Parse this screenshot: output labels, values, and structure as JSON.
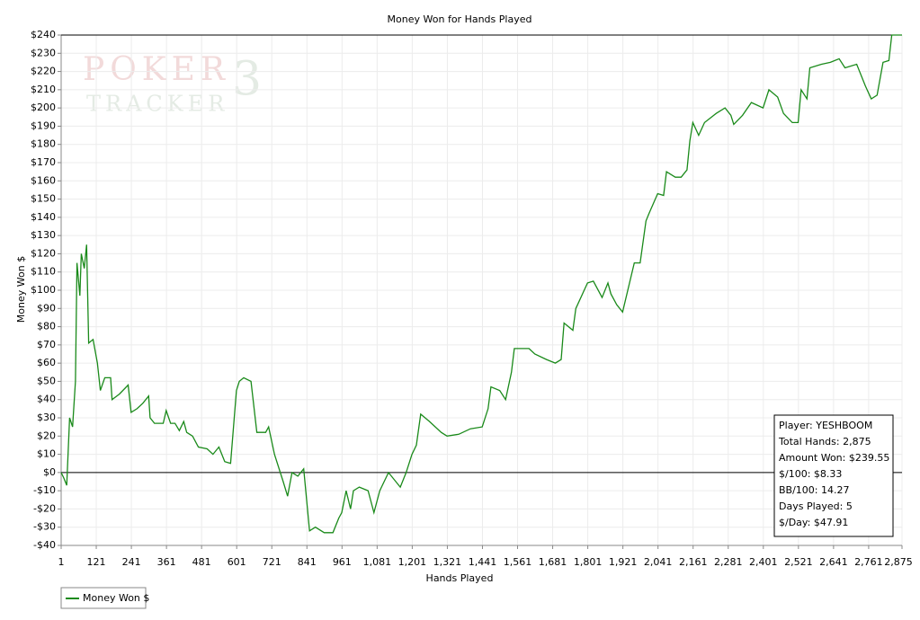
{
  "chart_data": {
    "type": "line",
    "title": "Money Won for Hands Played",
    "x_label": "Hands Played",
    "y_label": "Money Won $",
    "watermark": [
      "POKER",
      "TRACKER",
      "3"
    ],
    "annotations": [
      "Player: YESHBOOM",
      "Total Hands: 2,875",
      "Amount Won: $239.55",
      "$/100: $8.33",
      "BB/100: 14.27",
      "Days Played: 5",
      "$/Day: $47.91"
    ],
    "grid": true,
    "legend": "bottom-left",
    "xlim": [
      1,
      2875
    ],
    "ylim": [
      -40,
      240
    ],
    "xticks": [
      1,
      121,
      241,
      361,
      481,
      601,
      721,
      841,
      961,
      {
        "value": 1081,
        "label": "1,081"
      },
      {
        "value": 1201,
        "label": "1,201"
      },
      {
        "value": 1321,
        "label": "1,321"
      },
      {
        "value": 1441,
        "label": "1,441"
      },
      {
        "value": 1561,
        "label": "1,561"
      },
      {
        "value": 1681,
        "label": "1,681"
      },
      {
        "value": 1801,
        "label": "1,801"
      },
      {
        "value": 1921,
        "label": "1,921"
      },
      {
        "value": 2041,
        "label": "2,041"
      },
      {
        "value": 2161,
        "label": "2,161"
      },
      {
        "value": 2281,
        "label": "2,281"
      },
      {
        "value": 2401,
        "label": "2,401"
      },
      {
        "value": 2521,
        "label": "2,521"
      },
      {
        "value": 2641,
        "label": "2,641"
      },
      {
        "value": 2761,
        "label": "2,761"
      },
      {
        "value": 2875,
        "label": "2,875"
      }
    ],
    "yticks": [
      {
        "value": -40,
        "label": "-$40"
      },
      {
        "value": -30,
        "label": "-$30"
      },
      {
        "value": -20,
        "label": "-$20"
      },
      {
        "value": -10,
        "label": "-$10"
      },
      {
        "value": 0,
        "label": "$0"
      },
      {
        "value": 10,
        "label": "$10"
      },
      {
        "value": 20,
        "label": "$20"
      },
      {
        "value": 30,
        "label": "$30"
      },
      {
        "value": 40,
        "label": "$40"
      },
      {
        "value": 50,
        "label": "$50"
      },
      {
        "value": 60,
        "label": "$60"
      },
      {
        "value": 70,
        "label": "$70"
      },
      {
        "value": 80,
        "label": "$80"
      },
      {
        "value": 90,
        "label": "$90"
      },
      {
        "value": 100,
        "label": "$100"
      },
      {
        "value": 110,
        "label": "$110"
      },
      {
        "value": 120,
        "label": "$120"
      },
      {
        "value": 130,
        "label": "$130"
      },
      {
        "value": 140,
        "label": "$140"
      },
      {
        "value": 150,
        "label": "$150"
      },
      {
        "value": 160,
        "label": "$160"
      },
      {
        "value": 170,
        "label": "$170"
      },
      {
        "value": 180,
        "label": "$180"
      },
      {
        "value": 190,
        "label": "$190"
      },
      {
        "value": 200,
        "label": "$200"
      },
      {
        "value": 210,
        "label": "$210"
      },
      {
        "value": 220,
        "label": "$220"
      },
      {
        "value": 230,
        "label": "$230"
      },
      {
        "value": 240,
        "label": "$240"
      }
    ],
    "x": [
      1,
      10,
      20,
      30,
      40,
      50,
      55,
      65,
      70,
      80,
      88,
      95,
      110,
      125,
      135,
      150,
      170,
      175,
      200,
      230,
      240,
      260,
      280,
      300,
      305,
      320,
      350,
      360,
      375,
      390,
      405,
      420,
      430,
      450,
      470,
      500,
      520,
      540,
      560,
      580,
      600,
      610,
      625,
      650,
      670,
      700,
      710,
      730,
      760,
      775,
      790,
      810,
      830,
      850,
      870,
      900,
      930,
      950,
      960,
      975,
      990,
      1000,
      1020,
      1050,
      1070,
      1090,
      1120,
      1160,
      1180,
      1200,
      1215,
      1230,
      1260,
      1300,
      1320,
      1360,
      1400,
      1440,
      1460,
      1470,
      1500,
      1520,
      1540,
      1550,
      1600,
      1620,
      1660,
      1690,
      1710,
      1720,
      1750,
      1760,
      1800,
      1820,
      1850,
      1870,
      1880,
      1900,
      1920,
      1960,
      1980,
      2000,
      2010,
      2040,
      2060,
      2070,
      2100,
      2120,
      2140,
      2150,
      2160,
      2180,
      2200,
      2240,
      2270,
      2290,
      2300,
      2330,
      2360,
      2400,
      2420,
      2450,
      2470,
      2500,
      2520,
      2530,
      2550,
      2560,
      2600,
      2630,
      2660,
      2680,
      2720,
      2750,
      2770,
      2790,
      2810,
      2830,
      2840,
      2875
    ],
    "series": [
      {
        "name": "Money Won $",
        "color": "#1a8a1a",
        "values": [
          0,
          -3,
          -7,
          30,
          25,
          50,
          115,
          97,
          120,
          112,
          125,
          71,
          73,
          60,
          45,
          52,
          52,
          40,
          43,
          48,
          33,
          35,
          38,
          42,
          30,
          27,
          27,
          34,
          27,
          27,
          23,
          28,
          22,
          20,
          14,
          13,
          10,
          14,
          6,
          5,
          45,
          50,
          52,
          50,
          22,
          22,
          25,
          10,
          -5,
          -13,
          0,
          -2,
          2,
          -32,
          -30,
          -33,
          -33,
          -25,
          -22,
          -10,
          -20,
          -10,
          -8,
          -10,
          -22,
          -10,
          0,
          -8,
          0,
          10,
          15,
          32,
          28,
          22,
          20,
          21,
          24,
          25,
          35,
          47,
          45,
          40,
          55,
          68,
          68,
          65,
          62,
          60,
          62,
          82,
          78,
          90,
          104,
          105,
          96,
          104,
          98,
          92,
          88,
          115,
          115,
          138,
          142,
          153,
          152,
          165,
          162,
          162,
          166,
          182,
          192,
          185,
          192,
          197,
          200,
          196,
          191,
          196,
          203,
          200,
          210,
          206,
          197,
          192,
          192,
          210,
          205,
          222,
          224,
          225,
          227,
          222,
          224,
          212,
          205,
          207,
          225,
          226,
          240,
          240
        ]
      }
    ]
  }
}
